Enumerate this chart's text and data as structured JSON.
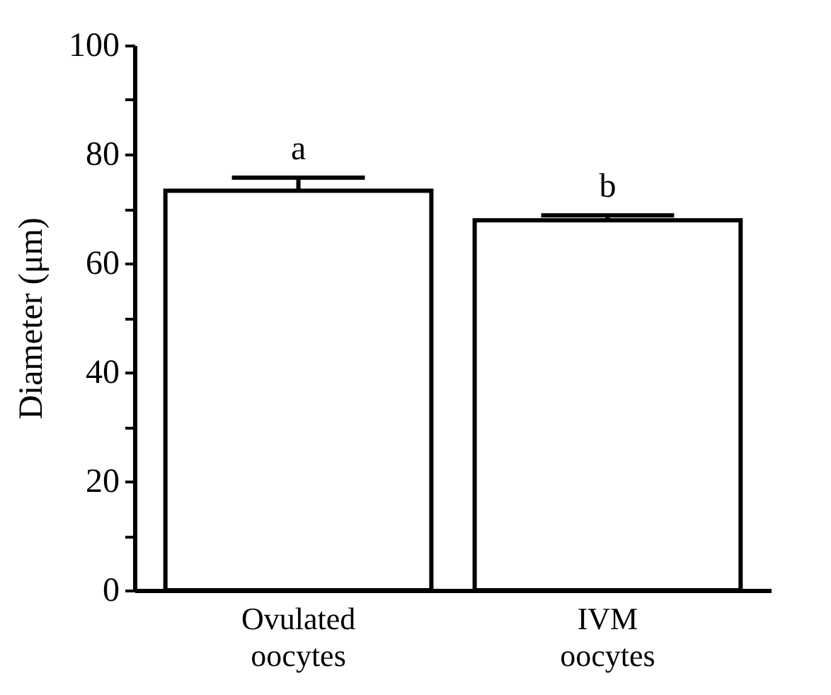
{
  "chart_data": {
    "type": "bar",
    "ylabel": "Diameter (μm)",
    "categories": [
      "Ovulated oocytes",
      "IVM oocytes"
    ],
    "values": [
      73.3,
      67.9
    ],
    "errors": [
      2.4,
      0.9
    ],
    "color": "#ffffff",
    "ylim": [
      0,
      100
    ],
    "yticks": [
      0,
      {
        "value": 10,
        "label": null
      },
      20,
      {
        "value": 30,
        "label": null
      },
      40,
      {
        "value": 50,
        "label": null
      },
      60,
      {
        "value": 70,
        "label": null
      },
      80,
      {
        "value": 90,
        "label": null
      },
      100
    ],
    "annotations": [
      {
        "text": "a",
        "x": "Ovulated oocytes",
        "y": 75.7
      },
      {
        "text": "b",
        "x": "IVM oocytes",
        "y": 68.8
      }
    ],
    "grid": false
  }
}
